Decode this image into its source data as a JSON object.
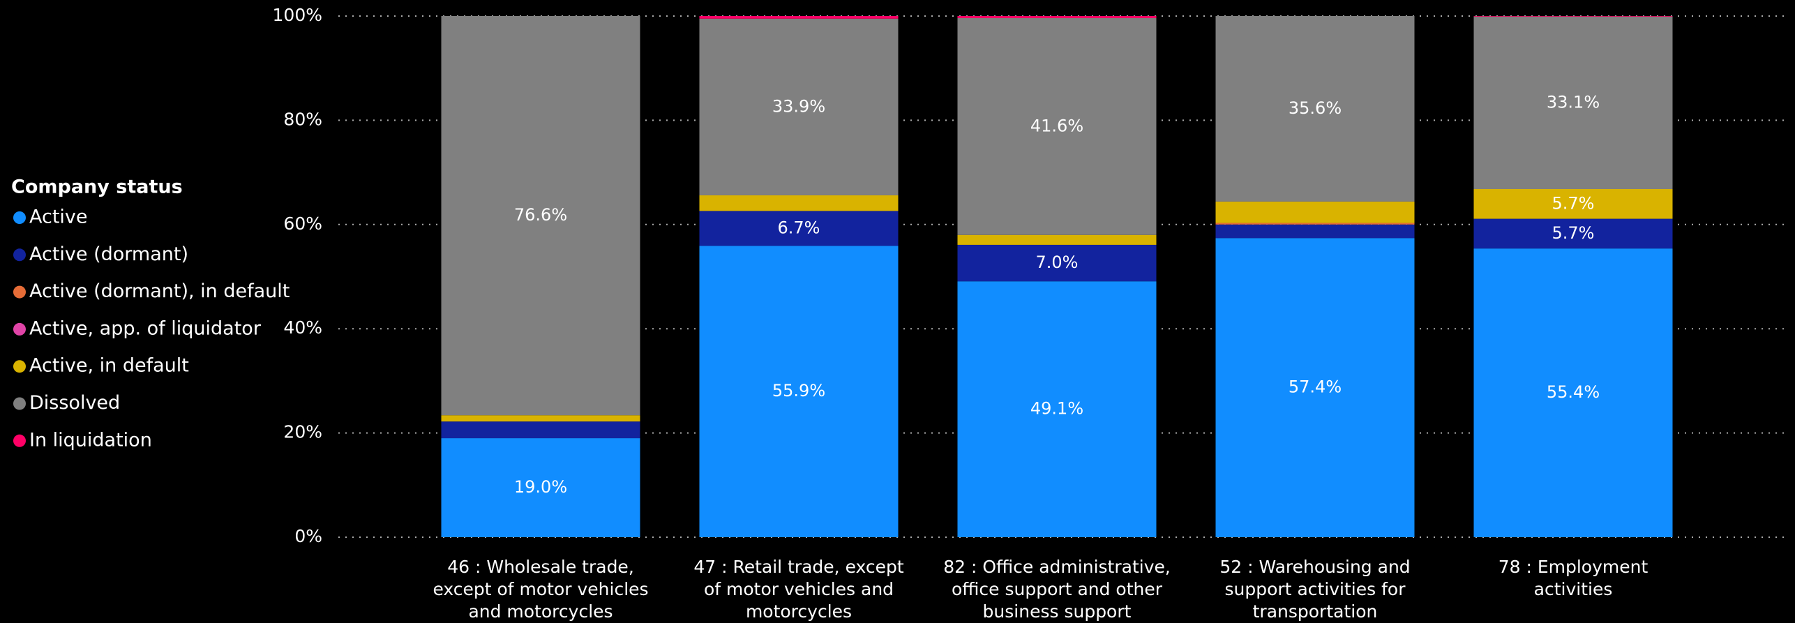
{
  "chart_data": {
    "type": "stacked_bar_100",
    "legend_title": "Company status",
    "legend_position": "left",
    "categories": [
      "46 : Wholesale trade, except of motor vehicles and motorcycles",
      "47 : Retail trade, except of motor vehicles and motorcycles",
      "82 : Office administrative, office support and other business support activities",
      "52 : Warehousing and support activities for transportation",
      "78 : Employment activities"
    ],
    "series": [
      {
        "name": "Active",
        "color": "#118DFF",
        "values": [
          19.0,
          55.9,
          49.1,
          57.4,
          55.4
        ],
        "value_labels": [
          "19.0%",
          "55.9%",
          "49.1%",
          "57.4%",
          "55.4%"
        ]
      },
      {
        "name": "Active (dormant)",
        "color": "#12239E",
        "values": [
          3.2,
          6.7,
          7.0,
          2.6,
          5.7
        ],
        "value_labels": [
          null,
          "6.7%",
          "7.0%",
          null,
          "5.7%"
        ]
      },
      {
        "name": "Active (dormant), in default",
        "color": "#E66C37",
        "values": [
          0,
          0,
          0,
          0.3,
          0
        ],
        "value_labels": [
          null,
          null,
          null,
          null,
          null
        ]
      },
      {
        "name": "Active, app. of liquidator",
        "color": "#E044A7",
        "values": [
          0,
          0,
          0,
          0,
          0
        ],
        "value_labels": [
          null,
          null,
          null,
          null,
          null
        ]
      },
      {
        "name": "Active, in default",
        "color": "#D9B300",
        "values": [
          1.2,
          3.0,
          1.9,
          4.1,
          5.7
        ],
        "value_labels": [
          null,
          null,
          null,
          null,
          "5.7%"
        ]
      },
      {
        "name": "Dissolved",
        "color": "#808080",
        "values": [
          76.6,
          33.9,
          41.6,
          35.6,
          33.1
        ],
        "value_labels": [
          "76.6%",
          "33.9%",
          "41.6%",
          "35.6%",
          "33.1%"
        ]
      },
      {
        "name": "In liquidation",
        "color": "#FF0066",
        "values": [
          0,
          0.5,
          0.4,
          0,
          0.1
        ],
        "value_labels": [
          null,
          null,
          null,
          null,
          null
        ]
      }
    ],
    "ylim": [
      0,
      100
    ],
    "yticks": [
      {
        "value": 0,
        "label": "0%"
      },
      {
        "value": 20,
        "label": "20%"
      },
      {
        "value": 40,
        "label": "40%"
      },
      {
        "value": 60,
        "label": "60%"
      },
      {
        "value": 80,
        "label": "80%"
      },
      {
        "value": 100,
        "label": "100%"
      }
    ],
    "grid": true
  }
}
